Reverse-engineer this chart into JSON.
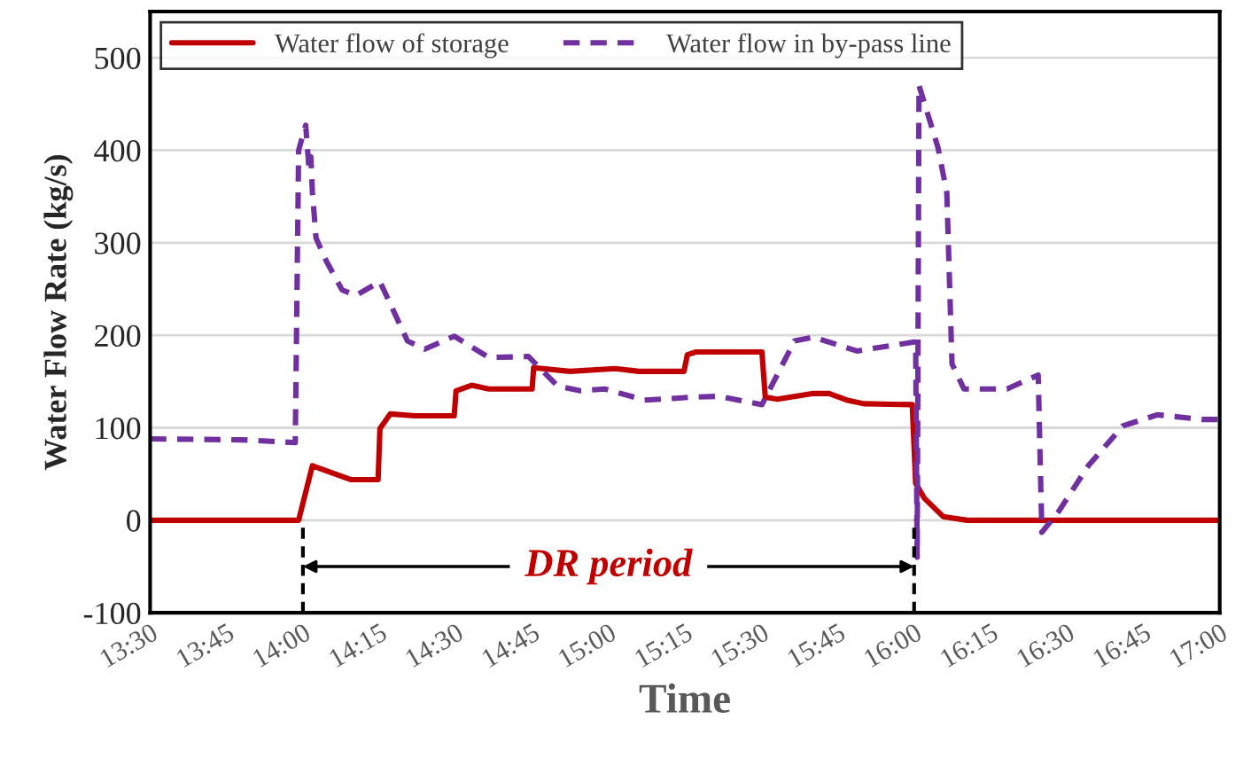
{
  "chart_data": {
    "type": "line",
    "xlabel": "Time",
    "ylabel": "Water Flow Rate (kg/s)",
    "xlim": [
      13.5,
      17.0
    ],
    "ylim": [
      -100,
      550
    ],
    "xticks": [
      {
        "value": 13.5,
        "label": "13:30"
      },
      {
        "value": 13.75,
        "label": "13:45"
      },
      {
        "value": 14.0,
        "label": "14:00"
      },
      {
        "value": 14.25,
        "label": "14:15"
      },
      {
        "value": 14.5,
        "label": "14:30"
      },
      {
        "value": 14.75,
        "label": "14:45"
      },
      {
        "value": 15.0,
        "label": "15:00"
      },
      {
        "value": 15.25,
        "label": "15:15"
      },
      {
        "value": 15.5,
        "label": "15:30"
      },
      {
        "value": 15.75,
        "label": "15:45"
      },
      {
        "value": 16.0,
        "label": "16:00"
      },
      {
        "value": 16.25,
        "label": "16:15"
      },
      {
        "value": 16.5,
        "label": "16:30"
      },
      {
        "value": 16.75,
        "label": "16:45"
      },
      {
        "value": 17.0,
        "label": "17:00"
      }
    ],
    "yticks": [
      -100,
      0,
      100,
      200,
      300,
      400,
      500
    ],
    "grid": "y",
    "legend": "top left",
    "marker": "none",
    "series": [
      {
        "name": "Water flow of storage",
        "color": "#c00000",
        "line_style": "solid",
        "x": [
          13.5,
          13.986,
          14.031,
          14.156,
          14.246,
          14.252,
          14.286,
          14.365,
          14.495,
          14.501,
          14.552,
          14.608,
          14.75,
          14.755,
          14.874,
          15.021,
          15.1,
          15.247,
          15.258,
          15.287,
          15.502,
          15.513,
          15.553,
          15.666,
          15.722,
          15.779,
          15.835,
          15.994,
          16.005,
          16.033,
          16.095,
          16.174,
          17.0
        ],
        "values": [
          0,
          0,
          59,
          44,
          44,
          99,
          115,
          113,
          113,
          140,
          146,
          142,
          142,
          165,
          161,
          164,
          161,
          161,
          179,
          182,
          182,
          133,
          131,
          137,
          137,
          130,
          126,
          125,
          40,
          24,
          4,
          0,
          0
        ]
      },
      {
        "name": "Water flow in by-pass line",
        "color": "#7030a0",
        "line_style": "dashed",
        "x": [
          13.5,
          13.8,
          13.975,
          13.986,
          14.009,
          14.02,
          14.026,
          14.031,
          14.043,
          14.077,
          14.128,
          14.173,
          14.252,
          14.342,
          14.399,
          14.495,
          14.608,
          14.738,
          14.834,
          14.908,
          14.987,
          15.117,
          15.174,
          15.27,
          15.36,
          15.502,
          15.609,
          15.671,
          15.813,
          16.005,
          16.01,
          16.016,
          16.078,
          16.107,
          16.124,
          16.163,
          16.304,
          16.406,
          16.418,
          16.474,
          16.57,
          16.683,
          16.796,
          16.943,
          17.0
        ],
        "values": [
          88,
          87,
          84,
          400,
          427,
          380,
          393,
          355,
          305,
          280,
          249,
          243,
          258,
          194,
          185,
          199,
          176,
          177,
          145,
          140,
          142,
          130,
          131,
          133,
          134,
          125,
          194,
          198,
          183,
          193,
          -40,
          470,
          403,
          354,
          169,
          142,
          142,
          157,
          -13,
          10,
          59,
          102,
          114,
          109,
          109
        ]
      }
    ],
    "ref_lines": [
      {
        "axis": "x",
        "value": 14.0,
        "color": "#000000",
        "line_style": "dashed"
      },
      {
        "axis": "x",
        "value": 16.0,
        "color": "#000000",
        "line_style": "dashed"
      }
    ],
    "annotations": [
      "DR period"
    ]
  }
}
